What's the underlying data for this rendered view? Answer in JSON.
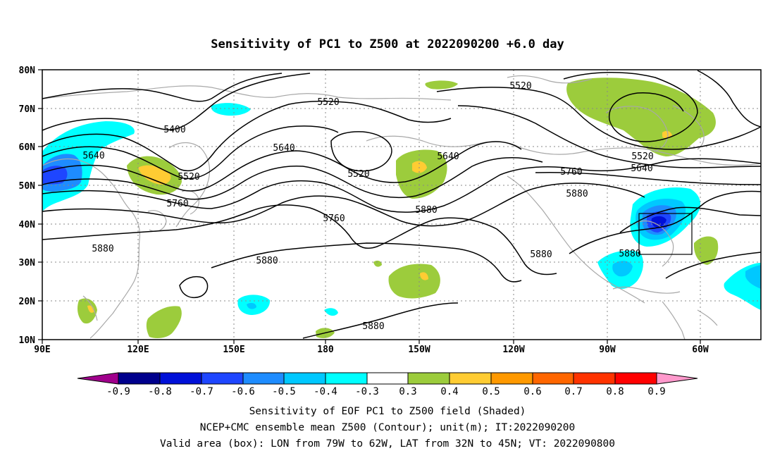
{
  "title": "Sensitivity of PC1 to Z500 at 2022090200 +6.0 day",
  "map": {
    "lat_labels": [
      "80N",
      "70N",
      "60N",
      "50N",
      "40N",
      "30N",
      "20N",
      "10N"
    ],
    "lon_labels": [
      "90E",
      "120E",
      "150E",
      "180",
      "150W",
      "120W",
      "90W",
      "60W"
    ],
    "contour_labels": [
      "5400",
      "5520",
      "5640",
      "5520",
      "5760",
      "5880",
      "5640",
      "5520",
      "5760",
      "5640",
      "5880",
      "5520",
      "5520",
      "5640",
      "5760",
      "5880",
      "5880",
      "5880",
      "5880",
      "5880"
    ],
    "valid_box": {
      "lon_from": "79W",
      "lon_to": "62W",
      "lat_from": "32N",
      "lat_to": "45N"
    }
  },
  "colorbar": {
    "labels": [
      "-0.9",
      "-0.8",
      "-0.7",
      "-0.6",
      "-0.5",
      "-0.4",
      "-0.3",
      "0.3",
      "0.4",
      "0.5",
      "0.6",
      "0.7",
      "0.8",
      "0.9"
    ],
    "colors": [
      "#a0008c",
      "#00008c",
      "#0010d8",
      "#1e46ff",
      "#1e8cff",
      "#00c8ff",
      "#00ffff",
      "#ffffff",
      "#9ccc3c",
      "#ffcc33",
      "#ff9900",
      "#ff6600",
      "#ff3300",
      "#ff0000",
      "#ff99cc"
    ]
  },
  "footer": {
    "line1": "Sensitivity of EOF PC1 to Z500 field (Shaded)",
    "line2": "NCEP+CMC ensemble mean Z500 (Contour); unit(m); IT:2022090200",
    "line3": "Valid area (box): LON from 79W to 62W, LAT from 32N to 45N; VT: 2022090800"
  }
}
